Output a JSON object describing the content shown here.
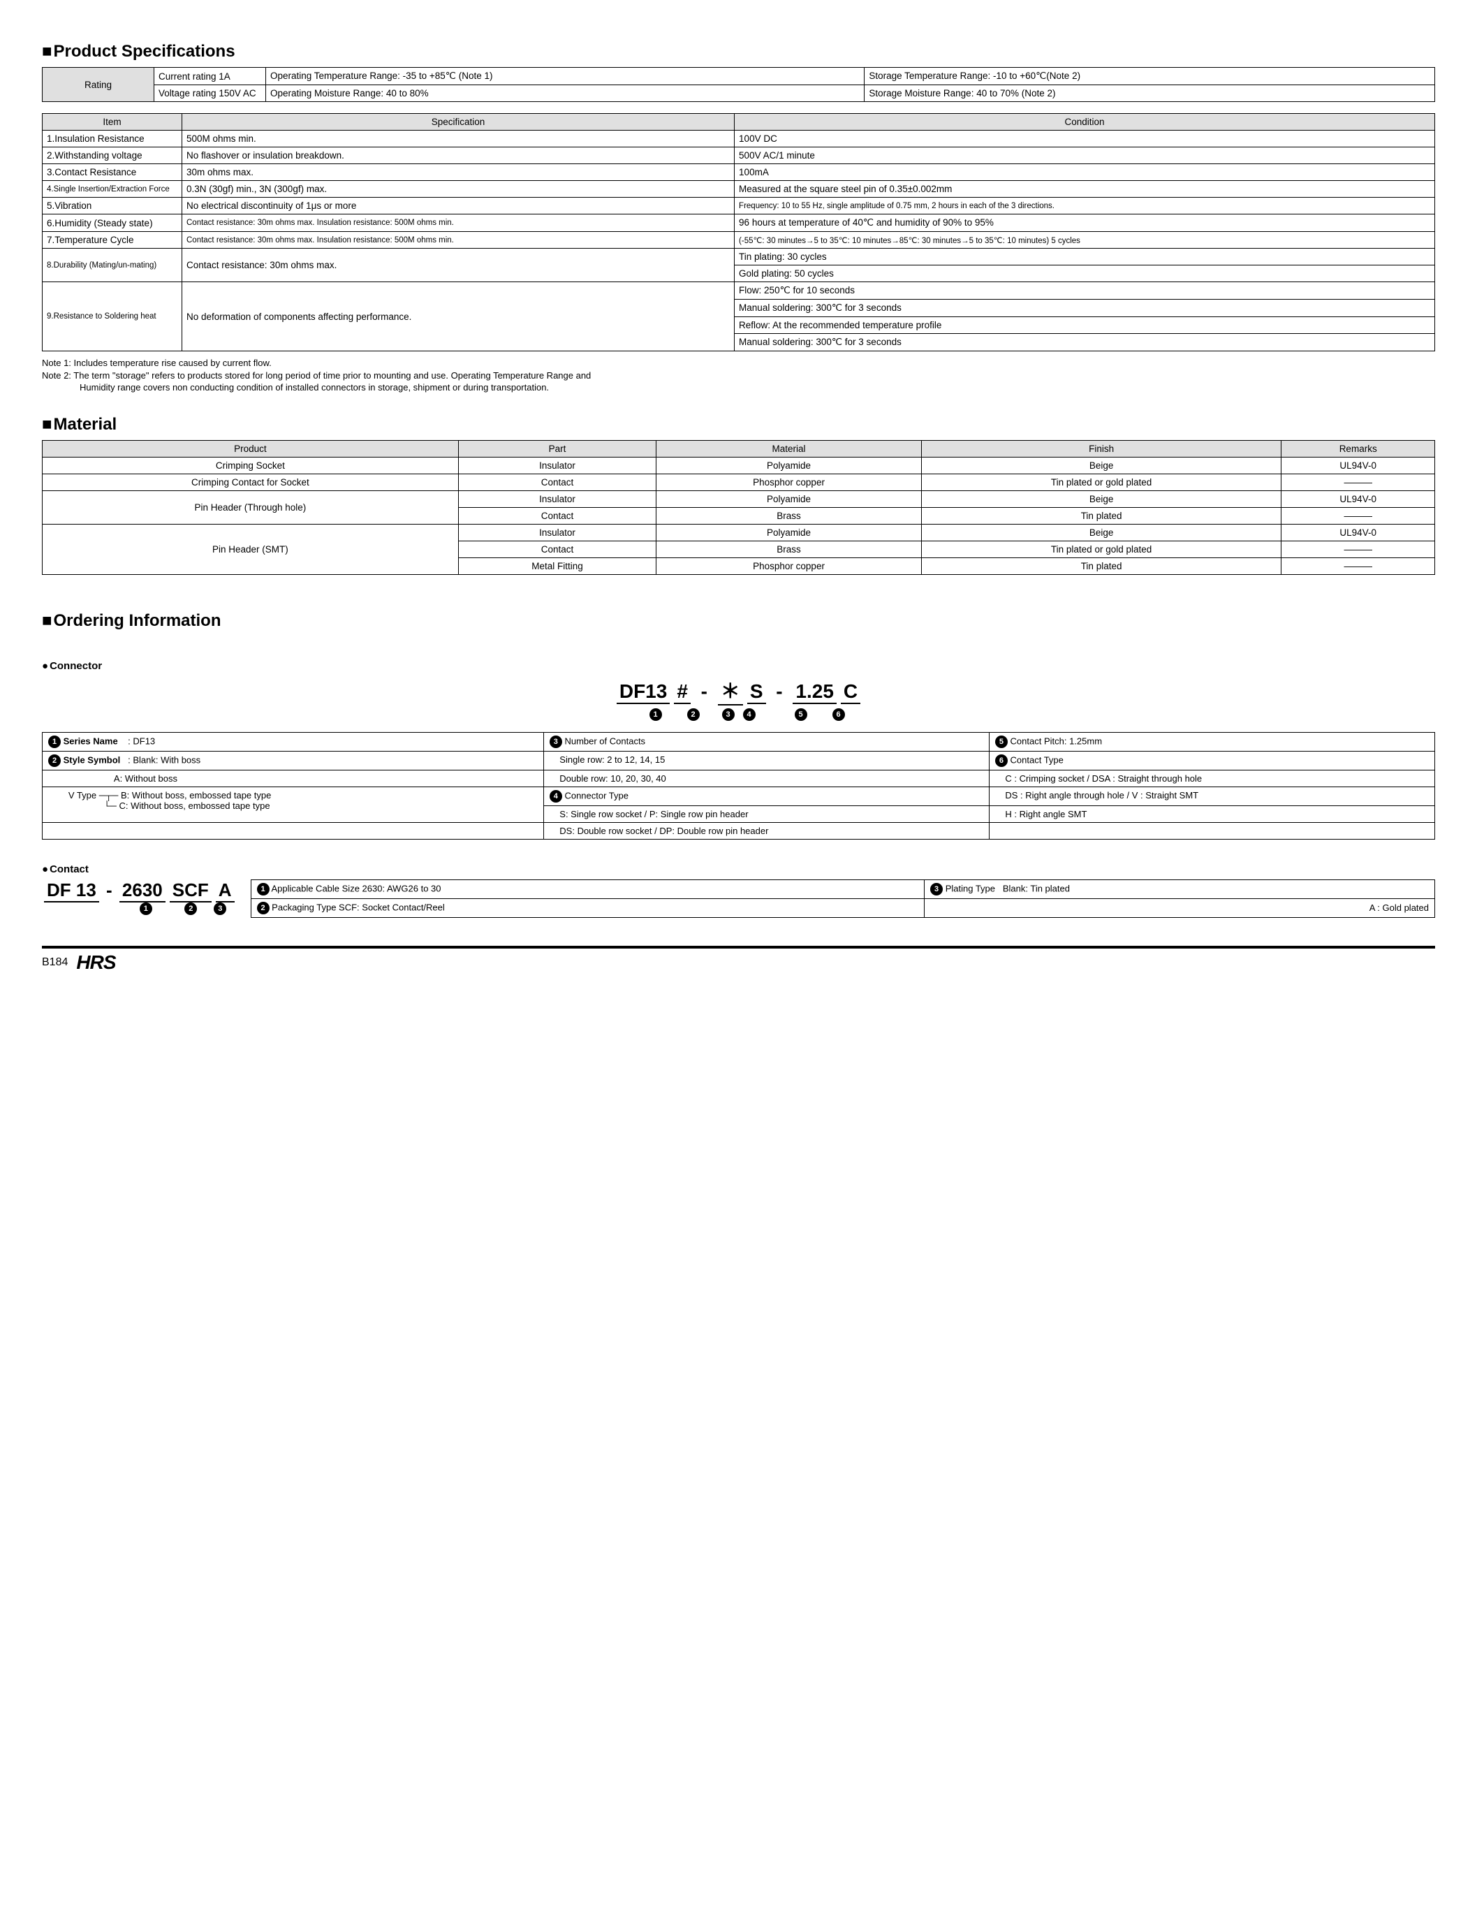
{
  "sections": {
    "spec_title": "Product Specifications",
    "material_title": "Material",
    "ordering_title": "Ordering Information"
  },
  "rating": {
    "label": "Rating",
    "rows": [
      {
        "c1": "Current rating  1A",
        "c2": "Operating Temperature Range: -35 to +85℃ (Note 1)",
        "c3": "Storage Temperature Range: -10 to +60℃(Note 2)"
      },
      {
        "c1": "Voltage rating  150V AC",
        "c2": "Operating Moisture Range: 40 to 80%",
        "c3": "Storage Moisture Range: 40 to 70%        (Note 2)"
      }
    ]
  },
  "spec_headers": {
    "item": "Item",
    "spec": "Specification",
    "cond": "Condition"
  },
  "spec_rows": [
    {
      "item": "1.Insulation Resistance",
      "spec": "500M ohms min.",
      "cond": "100V DC"
    },
    {
      "item": "2.Withstanding voltage",
      "spec": "No flashover or insulation breakdown.",
      "cond": "500V AC/1 minute"
    },
    {
      "item": "3.Contact Resistance",
      "spec": "30m ohms max.",
      "cond": "100mA"
    },
    {
      "item": "4.Single Insertion/Extraction Force",
      "spec": "0.3N (30gf) min., 3N (300gf) max.",
      "cond": "Measured at the square steel pin of 0.35±0.002mm"
    },
    {
      "item": "5.Vibration",
      "spec": "No electrical discontinuity of 1μs or more",
      "cond": "Frequency: 10 to 55 Hz, single amplitude of 0.75 mm, 2 hours in each of the 3 directions."
    },
    {
      "item": "6.Humidity (Steady state)",
      "spec": "Contact resistance: 30m ohms max. Insulation resistance: 500M ohms min.",
      "cond": "96 hours at temperature of 40℃ and humidity of 90% to 95%"
    },
    {
      "item": "7.Temperature Cycle",
      "spec": "Contact resistance: 30m ohms max. Insulation resistance: 500M ohms min.",
      "cond": "(-55℃: 30 minutes→5 to 35℃: 10 minutes→85℃: 30 minutes→5 to 35℃: 10 minutes) 5 cycles"
    },
    {
      "item": "8.Durability (Mating/un-mating)",
      "spec": "Contact resistance: 30m ohms max.",
      "cond": "Tin plating: 30 cycles"
    },
    {
      "item": "",
      "spec": "",
      "cond": "Gold plating: 50 cycles",
      "contOnly": true
    },
    {
      "item": "9.Resistance to Soldering heat",
      "spec": "No deformation of components affecting performance.",
      "cond": "Flow: 250℃ for 10 seconds"
    },
    {
      "item": "",
      "spec": "",
      "cond": "Manual soldering: 300℃ for 3 seconds",
      "contOnly": true
    },
    {
      "item": "",
      "spec": "",
      "cond": "Reflow: At the recommended temperature profile",
      "contOnly": true
    },
    {
      "item": "",
      "spec": "",
      "cond": "Manual soldering: 300℃ for 3 seconds",
      "contOnly": true
    }
  ],
  "notes": {
    "n1": "Note 1: Includes temperature rise caused by current flow.",
    "n2a": "Note 2: The term \"storage\" refers to products stored for long period of time prior to mounting and use. Operating Temperature Range and",
    "n2b": "Humidity range covers non conducting condition of installed connectors in storage, shipment or during transportation."
  },
  "material_headers": {
    "product": "Product",
    "part": "Part",
    "material": "Material",
    "finish": "Finish",
    "remarks": "Remarks"
  },
  "material_rows": [
    {
      "product": "Crimping Socket",
      "part": "Insulator",
      "material": "Polyamide",
      "finish": "Beige",
      "remarks": "UL94V-0"
    },
    {
      "product": "Crimping Contact for Socket",
      "part": "Contact",
      "material": "Phosphor copper",
      "finish": "Tin plated or gold plated",
      "remarks": "———"
    },
    {
      "product": "Pin Header (Through hole)",
      "part": "Insulator",
      "material": "Polyamide",
      "finish": "Beige",
      "remarks": "UL94V-0",
      "rowspan": 2
    },
    {
      "part": "Contact",
      "material": "Brass",
      "finish": "Tin plated",
      "remarks": "———"
    },
    {
      "product": "Pin Header (SMT)",
      "part": "Insulator",
      "material": "Polyamide",
      "finish": "Beige",
      "remarks": "UL94V-0",
      "rowspan": 3
    },
    {
      "part": "Contact",
      "material": "Brass",
      "finish": "Tin plated or gold plated",
      "remarks": "———"
    },
    {
      "part": "Metal Fitting",
      "material": "Phosphor copper",
      "finish": "Tin plated",
      "remarks": "———"
    }
  ],
  "connector": {
    "title": "Connector",
    "pn_segments": [
      "DF13",
      "#",
      "-",
      "＊",
      "S",
      "-",
      "1.25",
      "C"
    ],
    "markers": [
      "❶",
      "❷",
      "",
      "❸",
      "❹",
      "",
      "❺",
      "❻"
    ],
    "legend": {
      "c1_title": "Series Name",
      "c1_val": ": DF13",
      "c2_title": "Style Symbol",
      "c2_val": ": Blank: With boss",
      "c2_a": "A: Without boss",
      "c2_vtype": "V Type",
      "c2_b": "B: Without boss, embossed tape type",
      "c2_c": "C: Without boss, embossed tape type",
      "c3_title": "Number of Contacts",
      "c3_a": "Single row: 2 to 12, 14, 15",
      "c3_b": "Double row: 10, 20, 30, 40",
      "c4_title": "Connector Type",
      "c4_a": "S: Single row socket / P: Single row pin header",
      "c4_b": "DS: Double row socket / DP: Double row pin header",
      "c5_title": "Contact Pitch: 1.25mm",
      "c6_title": "Contact Type",
      "c6_a": "C : Crimping socket / DSA : Straight through hole",
      "c6_b": "DS : Right angle through hole / V : Straight SMT",
      "c6_c": "H : Right angle SMT"
    }
  },
  "contact": {
    "title": "Contact",
    "pn_segments": [
      "DF 13",
      "-",
      "2630",
      "SCF",
      "A"
    ],
    "markers": [
      "",
      "",
      "❶",
      "❷",
      "❸"
    ],
    "legend": {
      "l1": "Applicable Cable Size  2630: AWG26 to 30",
      "l2": "Packaging Type  SCF: Socket Contact/Reel",
      "l3_title": "Plating Type",
      "l3_a": "Blank: Tin plated",
      "l3_b": "A    : Gold plated"
    }
  },
  "footer": {
    "page": "B184",
    "logo": "HRS"
  }
}
